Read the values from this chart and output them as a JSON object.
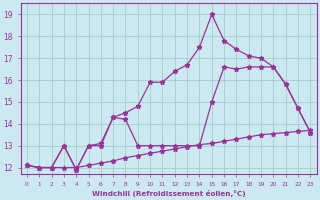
{
  "background_color": "#cce8f0",
  "line_color": "#993399",
  "grid_color": "#99ccbb",
  "xlabel": "Windchill (Refroidissement éolien,°C)",
  "ylabel_ticks": [
    12,
    13,
    14,
    15,
    16,
    17,
    18,
    19
  ],
  "xlim": [
    -0.5,
    23.5
  ],
  "ylim": [
    11.7,
    19.5
  ],
  "xticks": [
    0,
    1,
    2,
    3,
    4,
    5,
    6,
    7,
    8,
    9,
    10,
    11,
    12,
    13,
    14,
    15,
    16,
    17,
    18,
    19,
    20,
    21,
    22,
    23
  ],
  "series_bottom_x": [
    0,
    1,
    2,
    3,
    4,
    5,
    6,
    7,
    8,
    9,
    10,
    11,
    12,
    13,
    14,
    15,
    16,
    17,
    18,
    19,
    20,
    21,
    22,
    23
  ],
  "series_bottom_y": [
    12.1,
    12.0,
    12.0,
    12.0,
    12.0,
    12.1,
    12.2,
    12.3,
    12.45,
    12.55,
    12.65,
    12.75,
    12.85,
    12.95,
    13.05,
    13.1,
    13.2,
    13.3,
    13.4,
    13.5,
    13.55,
    13.6,
    13.65,
    13.7
  ],
  "series_peak_x": [
    0,
    1,
    2,
    3,
    4,
    5,
    6,
    7,
    8,
    9,
    10,
    11,
    12,
    13,
    14,
    15,
    16,
    17,
    18,
    19,
    20,
    21,
    22,
    23
  ],
  "series_peak_y": [
    12.1,
    12.0,
    12.0,
    13.0,
    11.9,
    13.0,
    13.0,
    14.3,
    14.5,
    14.8,
    15.9,
    15.9,
    16.4,
    16.7,
    17.5,
    19.0,
    17.8,
    17.4,
    17.1,
    17.0,
    16.6,
    15.8,
    14.7,
    13.6
  ],
  "series_mid_x": [
    0,
    1,
    2,
    3,
    4,
    5,
    6,
    7,
    8,
    9,
    10,
    11,
    12,
    13,
    14,
    15,
    16,
    17,
    18,
    19,
    20,
    21,
    22,
    23
  ],
  "series_mid_y": [
    12.1,
    12.0,
    12.0,
    13.0,
    11.9,
    13.0,
    13.1,
    14.3,
    14.2,
    13.0,
    13.0,
    13.0,
    13.0,
    13.0,
    13.0,
    15.0,
    16.6,
    16.5,
    16.6,
    16.6,
    16.6,
    15.8,
    14.7,
    13.6
  ]
}
